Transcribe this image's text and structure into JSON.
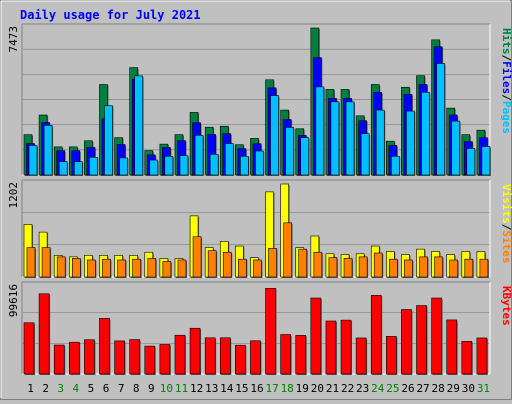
{
  "chart_data": {
    "type": "bar",
    "title": "Daily usage for July 2021",
    "categories": [
      "1",
      "2",
      "3",
      "4",
      "5",
      "6",
      "7",
      "8",
      "9",
      "10",
      "11",
      "12",
      "13",
      "14",
      "15",
      "16",
      "17",
      "18",
      "19",
      "20",
      "21",
      "22",
      "23",
      "24",
      "25",
      "26",
      "27",
      "28",
      "29",
      "30",
      "31"
    ],
    "weekend_days": [
      "3",
      "4",
      "10",
      "11",
      "17",
      "18",
      "24",
      "25",
      "31"
    ],
    "colors": {
      "background": "#c0c0c0",
      "title": "#0000ff",
      "hits": "#008040",
      "files": "#0000ff",
      "pages": "#00c0ff",
      "visits": "#ffff00",
      "sites": "#ff8000",
      "kbytes": "#ff0000",
      "weekday_label": "#000000",
      "weekend_label": "#008000"
    },
    "panels": [
      {
        "name": "top",
        "max_label": "7473",
        "max": 7473,
        "legend": [
          "Pages",
          "/",
          "Files",
          "/",
          "Hits"
        ],
        "legend_colors": [
          "#00c0ff",
          "#000000",
          "#0000ff",
          "#000000",
          "#008040"
        ],
        "series": [
          {
            "name": "Hits",
            "values": [
              2050,
              3050,
              1430,
              1430,
              1740,
              4600,
              1900,
              5460,
              1240,
              1570,
              2050,
              3180,
              2430,
              2480,
              1540,
              1860,
              4840,
              3300,
              2350,
              7473,
              4350,
              4350,
              3010,
              4600,
              1720,
              4460,
              5050,
              6870,
              3400,
              2050,
              2280
            ]
          },
          {
            "name": "Files",
            "values": [
              1600,
              2670,
              1240,
              1240,
              1400,
              2860,
              1550,
              4870,
              1020,
              1400,
              1750,
              2660,
              2060,
              2100,
              1340,
              1590,
              4430,
              2820,
              2010,
              5970,
              3900,
              3900,
              2760,
              4200,
              1500,
              4100,
              4600,
              6520,
              3050,
              1700,
              1900
            ]
          },
          {
            "name": "Pages",
            "values": [
              1500,
              2520,
              680,
              680,
              900,
              3520,
              870,
              5040,
              760,
              950,
              980,
              2020,
              1050,
              1600,
              950,
              1220,
              4040,
              2420,
              1900,
              4480,
              3720,
              3720,
              2100,
              3300,
              950,
              3250,
              4200,
              5670,
              2740,
              1350,
              1450
            ]
          }
        ]
      },
      {
        "name": "middle",
        "max_label": "1202",
        "max": 1202,
        "legend": [
          "Sites",
          "/",
          "Visits"
        ],
        "legend_colors": [
          "#ff8000",
          "#000000",
          "#ffff00"
        ],
        "series": [
          {
            "name": "Visits",
            "values": [
              680,
              580,
              280,
              260,
              280,
              280,
              280,
              280,
              320,
              240,
              240,
              790,
              380,
              460,
              400,
              250,
              1100,
              1202,
              380,
              530,
              300,
              290,
              300,
              400,
              330,
              290,
              360,
              330,
              290,
              330,
              330
            ]
          },
          {
            "name": "Sites",
            "values": [
              380,
              380,
              260,
              240,
              220,
              230,
              220,
              230,
              240,
              200,
              220,
              520,
              340,
              320,
              230,
              220,
              370,
              700,
              360,
              320,
              250,
              240,
              260,
              310,
              230,
              220,
              260,
              260,
              220,
              230,
              230
            ]
          }
        ]
      },
      {
        "name": "bottom",
        "max_label": "99616",
        "max": 99616,
        "legend": [
          "KBytes"
        ],
        "legend_colors": [
          "#ff0000"
        ],
        "series": [
          {
            "name": "KBytes",
            "values": [
              58000,
              90800,
              32800,
              36000,
              38800,
              63000,
              37500,
              39000,
              31600,
              33400,
              43900,
              51800,
              41000,
              41000,
              32600,
              37600,
              97000,
              44700,
              43700,
              86000,
              60000,
              61000,
              40800,
              89000,
              42600,
              73000,
              77500,
              86000,
              61200,
              37000,
              40800
            ]
          }
        ]
      }
    ]
  }
}
